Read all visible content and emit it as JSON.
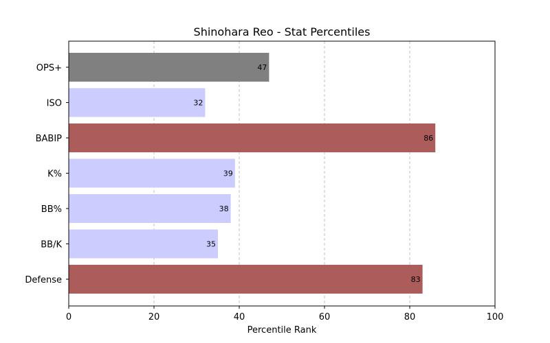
{
  "chart_data": {
    "type": "bar",
    "orientation": "horizontal",
    "title": "Shinohara Reo - Stat Percentiles",
    "xlabel": "Percentile Rank",
    "ylabel": "",
    "xlim": [
      0,
      100
    ],
    "xticks": [
      0,
      20,
      40,
      60,
      80,
      100
    ],
    "grid": "x-axis, dashed",
    "categories": [
      "OPS+",
      "ISO",
      "BABIP",
      "K%",
      "BB%",
      "BB/K",
      "Defense"
    ],
    "values": [
      47,
      32,
      86,
      39,
      38,
      35,
      83
    ],
    "bar_colors": [
      "#808080",
      "#ccccff",
      "#ad5c5c",
      "#ccccff",
      "#ccccff",
      "#ccccff",
      "#ad5c5c"
    ]
  }
}
